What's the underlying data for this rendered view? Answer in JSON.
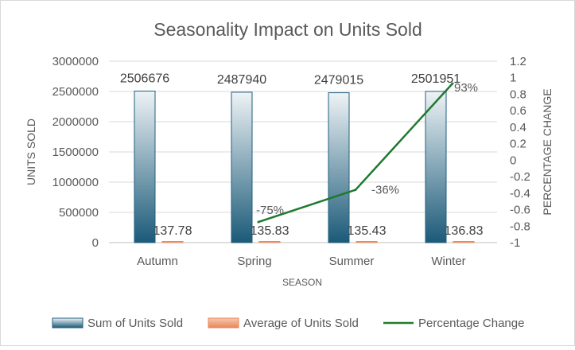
{
  "chart_data": {
    "type": "bar",
    "title": "Seasonality Impact on Units Sold",
    "xlabel": "SEASON",
    "ylabel": "UNITS SOLD",
    "y2label": "PERCENTAGE CHANGE",
    "categories": [
      "Autumn",
      "Spring",
      "Summer",
      "Winter"
    ],
    "ylim": [
      0,
      3000000
    ],
    "yticks": [
      "0",
      "500000",
      "1000000",
      "1500000",
      "2000000",
      "2500000",
      "3000000"
    ],
    "y2lim": [
      -1,
      1.2
    ],
    "y2ticks": [
      "-1",
      "-0.8",
      "-0.6",
      "-0.4",
      "-0.2",
      "0",
      "0.2",
      "0.4",
      "0.6",
      "0.8",
      "1",
      "1.2"
    ],
    "grid": true,
    "legend_position": "bottom",
    "series": [
      {
        "name": "Sum of Units Sold",
        "type": "bar",
        "axis": "primary",
        "values": [
          2506676,
          2487940,
          2479015,
          2501951
        ],
        "labels": [
          "2506676",
          "2487940",
          "2479015",
          "2501951"
        ],
        "color": "#1f5f7f"
      },
      {
        "name": "Average of Units Sold",
        "type": "bar",
        "axis": "primary",
        "values": [
          137.78,
          135.83,
          135.43,
          136.83
        ],
        "labels": [
          "137.78",
          "135.83",
          "135.43",
          "136.83"
        ],
        "color": "#e8875a"
      },
      {
        "name": "Percentage Change",
        "type": "line",
        "axis": "secondary",
        "values": [
          null,
          -0.75,
          -0.36,
          0.93
        ],
        "labels": [
          "",
          "-75%",
          "-36%",
          "93%"
        ],
        "color": "#1e7a2e"
      }
    ]
  }
}
